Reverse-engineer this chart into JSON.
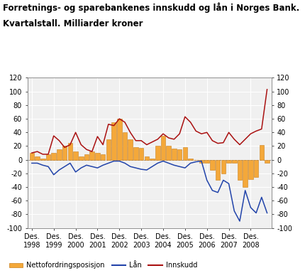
{
  "title_line1": "Forretnings- og sparebankenes innskudd og lån i Norges Bank.",
  "title_line2": "Kvartalstall. Milliarder kroner",
  "title_fontsize": 8.5,
  "xlabel_labels": [
    "Des.\n1998",
    "Des.\n1999",
    "Des.\n2000",
    "Des.\n2001",
    "Des.\n2002",
    "Des.\n2003",
    "Des.\n2004",
    "Des.\n2005",
    "Des.\n2006",
    "Des.\n2007",
    "Des.\n2008"
  ],
  "ylim": [
    -100,
    120
  ],
  "yticks": [
    -100,
    -80,
    -60,
    -40,
    -20,
    0,
    20,
    40,
    60,
    80,
    100,
    120
  ],
  "bar_color": "#F4A83A",
  "bar_edge_color": "#C88020",
  "loan_color": "#2244AA",
  "deposit_color": "#AA1111",
  "legend_bar_label": "Nettofordringsposisjon",
  "legend_loan_label": "Lån",
  "legend_deposit_label": "Innskudd",
  "bar_values": [
    10,
    5,
    2,
    8,
    10,
    15,
    20,
    25,
    12,
    5,
    8,
    12,
    10,
    8,
    30,
    55,
    60,
    40,
    30,
    18,
    17,
    5,
    2,
    20,
    35,
    20,
    16,
    15,
    18,
    2,
    0,
    -5,
    -5,
    -15,
    -30,
    -20,
    -5,
    -5,
    -30,
    -40,
    -28,
    -25,
    22,
    -5
  ],
  "loan_values": [
    -5,
    -5,
    -8,
    -10,
    -22,
    -15,
    -10,
    -5,
    -18,
    -12,
    -8,
    -10,
    -12,
    -8,
    -5,
    -2,
    -2,
    -5,
    -10,
    -12,
    -14,
    -15,
    -10,
    -5,
    -2,
    -5,
    -8,
    -10,
    -12,
    -5,
    -3,
    -2,
    -30,
    -45,
    -48,
    -30,
    -35,
    -75,
    -90,
    -45,
    -70,
    -78,
    -55,
    -78
  ],
  "deposit_values": [
    10,
    12,
    8,
    8,
    35,
    28,
    18,
    22,
    40,
    22,
    15,
    12,
    34,
    22,
    52,
    50,
    60,
    55,
    40,
    28,
    28,
    22,
    26,
    30,
    38,
    32,
    30,
    38,
    63,
    55,
    42,
    38,
    40,
    28,
    24,
    25,
    40,
    30,
    22,
    30,
    38,
    42,
    45,
    103
  ],
  "bg_color": "#f0f0f0",
  "grid_color": "#ffffff"
}
